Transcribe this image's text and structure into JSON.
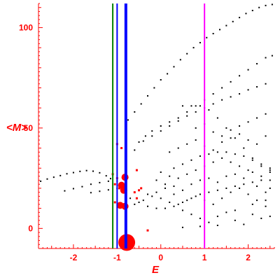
{
  "chart_data": {
    "type": "scatter",
    "title": "",
    "xlabel": "E",
    "ylabel": "<M>",
    "xlim": [
      -2.8,
      2.6
    ],
    "ylim": [
      -10,
      112
    ],
    "x_ticks": [
      {
        "value": -2,
        "label": "-2"
      },
      {
        "value": -1,
        "label": "-1"
      },
      {
        "value": 0,
        "label": "0"
      },
      {
        "value": 1,
        "label": "1"
      },
      {
        "value": 2,
        "label": "2"
      }
    ],
    "y_ticks": [
      {
        "value": 0,
        "label": "0"
      },
      {
        "value": 50,
        "label": "50"
      },
      {
        "value": 100,
        "label": "100"
      }
    ],
    "vertical_lines": [
      {
        "x": -1.1,
        "color": "#008000",
        "width": 2
      },
      {
        "x": -1.0,
        "color": "#0000ff",
        "width": 2
      },
      {
        "x": -0.8,
        "color": "#0000ff",
        "width": 4
      },
      {
        "x": 1.0,
        "color": "#ff00ff",
        "width": 2
      }
    ],
    "colors": {
      "axes": "#ff0000",
      "points": "#000000",
      "highlight": "#ff0000"
    },
    "series": [
      {
        "color": "#000000",
        "points": [
          [
            -2.75,
            23.5
          ],
          [
            -2.6,
            24.6
          ],
          [
            -2.45,
            25.5
          ],
          [
            -2.3,
            26.3
          ],
          [
            -2.15,
            27.2
          ],
          [
            -2.0,
            27.8
          ],
          [
            -1.85,
            28.4
          ],
          [
            -1.7,
            28.8
          ],
          [
            -1.55,
            28.5
          ],
          [
            -1.4,
            27.7
          ],
          [
            -1.25,
            26.2
          ],
          [
            -1.15,
            24.8
          ],
          [
            -2.2,
            18.7
          ],
          [
            -2.0,
            19.8
          ],
          [
            -1.8,
            20.8
          ],
          [
            -1.6,
            22.0
          ],
          [
            -1.4,
            22.8
          ],
          [
            -1.2,
            23.5
          ],
          [
            -1.0,
            23.6
          ],
          [
            -1.6,
            17.8
          ],
          [
            -1.4,
            18.5
          ],
          [
            -1.2,
            19.2
          ],
          [
            -1.0,
            19.9
          ],
          [
            -0.75,
            54
          ],
          [
            -0.6,
            58
          ],
          [
            -0.45,
            62
          ],
          [
            -0.3,
            66
          ],
          [
            -0.15,
            70
          ],
          [
            0.0,
            74
          ],
          [
            0.15,
            77
          ],
          [
            0.3,
            80.5
          ],
          [
            0.45,
            84
          ],
          [
            0.6,
            87
          ],
          [
            0.75,
            90
          ],
          [
            0.9,
            92.5
          ],
          [
            1.05,
            95
          ],
          [
            1.2,
            97
          ],
          [
            1.35,
            99
          ],
          [
            1.5,
            101
          ],
          [
            1.65,
            103
          ],
          [
            1.8,
            105
          ],
          [
            1.95,
            107
          ],
          [
            2.1,
            108.5
          ],
          [
            2.25,
            110
          ],
          [
            2.4,
            111
          ],
          [
            2.55,
            111.5
          ],
          [
            -0.5,
            43
          ],
          [
            -0.35,
            46
          ],
          [
            -0.2,
            48.5
          ],
          [
            0.0,
            51
          ],
          [
            0.2,
            53
          ],
          [
            0.4,
            55
          ],
          [
            0.6,
            58
          ],
          [
            0.8,
            61
          ],
          [
            1.0,
            64
          ],
          [
            1.2,
            67
          ],
          [
            1.4,
            70
          ],
          [
            1.6,
            73
          ],
          [
            1.8,
            76
          ],
          [
            2.0,
            79
          ],
          [
            2.2,
            82
          ],
          [
            2.4,
            85
          ],
          [
            2.55,
            86
          ],
          [
            -0.6,
            39
          ],
          [
            -0.4,
            43.5
          ],
          [
            -0.2,
            46
          ],
          [
            0.0,
            48.5
          ],
          [
            0.2,
            51
          ],
          [
            0.4,
            53.5
          ],
          [
            0.6,
            56
          ],
          [
            0.8,
            58
          ],
          [
            1.0,
            60
          ],
          [
            1.2,
            62
          ],
          [
            1.4,
            64
          ],
          [
            1.6,
            65.5
          ],
          [
            1.8,
            67
          ],
          [
            2.0,
            69
          ],
          [
            2.2,
            70.5
          ],
          [
            2.4,
            72
          ],
          [
            0.5,
            61
          ],
          [
            0.7,
            61
          ],
          [
            0.9,
            61
          ],
          [
            1.1,
            59
          ],
          [
            1.3,
            55
          ],
          [
            1.5,
            50
          ],
          [
            1.7,
            45
          ],
          [
            1.9,
            40
          ],
          [
            2.1,
            35
          ],
          [
            2.3,
            31
          ],
          [
            2.5,
            28
          ],
          [
            0.3,
            30
          ],
          [
            0.5,
            32
          ],
          [
            0.7,
            34
          ],
          [
            0.9,
            36
          ],
          [
            1.1,
            37
          ],
          [
            1.3,
            38
          ],
          [
            1.5,
            38
          ],
          [
            1.7,
            37
          ],
          [
            1.9,
            36
          ],
          [
            2.1,
            34
          ],
          [
            2.3,
            32
          ],
          [
            2.5,
            30
          ],
          [
            -0.7,
            15
          ],
          [
            -0.5,
            13
          ],
          [
            -0.3,
            11
          ],
          [
            -0.1,
            10
          ],
          [
            0.1,
            10
          ],
          [
            0.3,
            11
          ],
          [
            0.5,
            13
          ],
          [
            0.7,
            15
          ],
          [
            0.9,
            17
          ],
          [
            1.1,
            18
          ],
          [
            1.3,
            19
          ],
          [
            1.5,
            20
          ],
          [
            1.7,
            21
          ],
          [
            1.9,
            22
          ],
          [
            2.1,
            23
          ],
          [
            2.3,
            24
          ],
          [
            2.5,
            24
          ],
          [
            -0.6,
            12
          ],
          [
            -0.4,
            14
          ],
          [
            -0.2,
            16
          ],
          [
            0.0,
            15
          ],
          [
            0.2,
            13
          ],
          [
            0.4,
            12
          ],
          [
            0.6,
            14
          ],
          [
            0.8,
            16
          ],
          [
            1.0,
            14
          ],
          [
            1.2,
            12
          ],
          [
            1.4,
            15
          ],
          [
            1.6,
            18
          ],
          [
            1.8,
            20
          ],
          [
            2.0,
            17
          ],
          [
            2.2,
            14
          ],
          [
            2.4,
            11
          ],
          [
            -0.5,
            19
          ],
          [
            -0.3,
            17
          ],
          [
            -0.1,
            18
          ],
          [
            0.1,
            20
          ],
          [
            0.3,
            21
          ],
          [
            0.5,
            19
          ],
          [
            0.7,
            22
          ],
          [
            0.9,
            24
          ],
          [
            1.1,
            25
          ],
          [
            1.3,
            23
          ],
          [
            1.5,
            26
          ],
          [
            1.7,
            27
          ],
          [
            1.9,
            25
          ],
          [
            2.1,
            28
          ],
          [
            2.3,
            26
          ],
          [
            2.5,
            29
          ],
          [
            0.2,
            38
          ],
          [
            0.4,
            40
          ],
          [
            0.6,
            42
          ],
          [
            0.8,
            44
          ],
          [
            1.0,
            41
          ],
          [
            1.2,
            39
          ],
          [
            1.4,
            43
          ],
          [
            1.6,
            45
          ],
          [
            1.8,
            47
          ],
          [
            2.0,
            44
          ],
          [
            2.2,
            42
          ],
          [
            2.4,
            46
          ],
          [
            0.8,
            50
          ],
          [
            1.0,
            52
          ],
          [
            1.2,
            48
          ],
          [
            1.4,
            46
          ],
          [
            1.6,
            49
          ],
          [
            1.8,
            51
          ],
          [
            2.0,
            53
          ],
          [
            2.2,
            55
          ],
          [
            2.4,
            57
          ],
          [
            0.4,
            25
          ],
          [
            0.6,
            27
          ],
          [
            0.8,
            29
          ],
          [
            1.0,
            31
          ],
          [
            1.2,
            33
          ],
          [
            1.4,
            35
          ],
          [
            1.6,
            33
          ],
          [
            1.8,
            31
          ],
          [
            2.0,
            29
          ],
          [
            2.2,
            21
          ],
          [
            2.4,
            18
          ],
          [
            0.0,
            28
          ],
          [
            0.2,
            26
          ],
          [
            -0.1,
            24
          ],
          [
            0.1,
            22
          ],
          [
            0.3,
            17
          ],
          [
            0.5,
            9
          ],
          [
            0.7,
            7
          ],
          [
            0.9,
            5
          ],
          [
            1.1,
            3
          ],
          [
            1.3,
            6
          ],
          [
            1.5,
            8
          ],
          [
            1.7,
            4
          ],
          [
            1.9,
            2
          ],
          [
            2.1,
            7
          ],
          [
            2.3,
            5
          ],
          [
            2.5,
            6
          ],
          [
            0.5,
            0.5
          ],
          [
            0.9,
            1
          ],
          [
            1.3,
            1.5
          ],
          [
            1.7,
            9
          ],
          [
            2.1,
            12
          ],
          [
            2.4,
            14
          ],
          [
            2.5,
            20
          ]
        ]
      },
      {
        "color": "#ff0000",
        "points": [
          [
            -1.0,
            42
          ],
          [
            -0.9,
            40
          ],
          [
            -1.1,
            27
          ],
          [
            -1.0,
            25
          ],
          [
            -1.05,
            22
          ],
          [
            -0.95,
            20
          ],
          [
            -0.85,
            26
          ],
          [
            -0.55,
            29
          ],
          [
            -0.6,
            18
          ],
          [
            -0.45,
            20
          ],
          [
            -0.5,
            19
          ],
          [
            -0.55,
            15
          ],
          [
            -1.05,
            13
          ],
          [
            -0.3,
            -1
          ],
          [
            -0.85,
            12
          ]
        ]
      },
      {
        "color": "#ff0000",
        "point_size": "large",
        "points": [
          [
            -0.9,
            21.5
          ],
          [
            -0.85,
            19
          ],
          [
            -0.82,
            11
          ],
          [
            -0.93,
            11.5
          ],
          [
            -0.82,
            25.5
          ],
          [
            -0.78,
            -7
          ]
        ]
      }
    ]
  }
}
